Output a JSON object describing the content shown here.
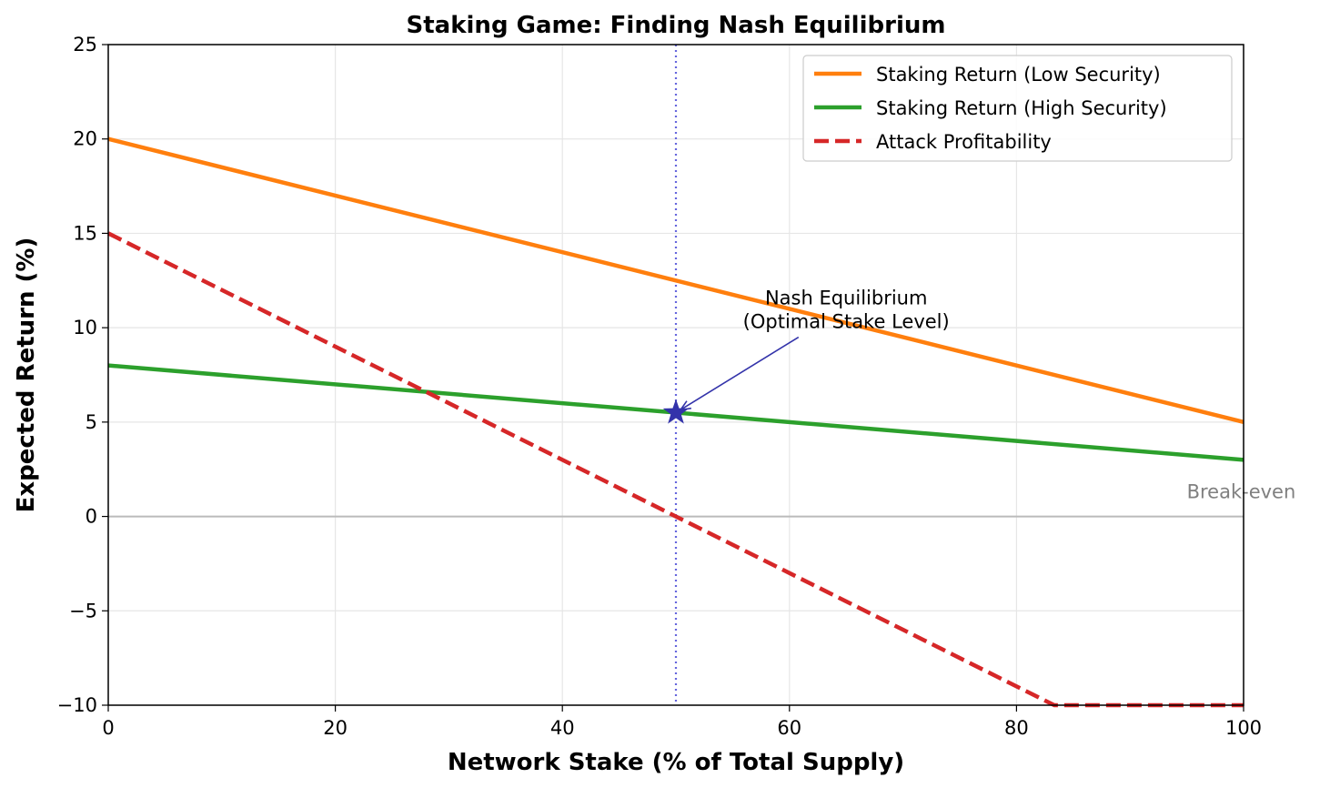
{
  "chart_data": {
    "type": "line",
    "title": "Staking Game: Finding Nash Equilibrium",
    "xlabel": "Network Stake (% of Total Supply)",
    "ylabel": "Expected Return (%)",
    "xlim": [
      0,
      100
    ],
    "ylim": [
      -10,
      25
    ],
    "xticks": [
      0,
      20,
      40,
      60,
      80,
      100
    ],
    "yticks": [
      -10,
      -5,
      0,
      5,
      10,
      15,
      20,
      25
    ],
    "xtick_labels": [
      "0",
      "20",
      "40",
      "60",
      "80",
      "100"
    ],
    "ytick_labels": [
      "−10",
      "−5",
      "0",
      "5",
      "10",
      "15",
      "20",
      "25"
    ],
    "grid": true,
    "legend_position": "top-right",
    "series": [
      {
        "name": "Staking Return (Low Security)",
        "color": "#ff7f0e",
        "style": "solid",
        "x": [
          0,
          100
        ],
        "y": [
          20,
          5
        ]
      },
      {
        "name": "Staking Return (High Security)",
        "color": "#2ca02c",
        "style": "solid",
        "x": [
          0,
          100
        ],
        "y": [
          8,
          3
        ]
      },
      {
        "name": "Attack Profitability",
        "color": "#d62728",
        "style": "dashed",
        "x": [
          0,
          83.33,
          100
        ],
        "y": [
          15,
          -10,
          -10
        ]
      }
    ],
    "reference_lines": {
      "break_even": {
        "y": 0,
        "label": "Break-even",
        "color": "#bbbbbb"
      },
      "equilibrium_stake": {
        "x": 50,
        "color": "#6666dd",
        "style": "dotted"
      }
    },
    "equilibrium_point": {
      "x": 50,
      "y": 5.5,
      "marker": "star",
      "color": "#3333aa"
    },
    "annotation": {
      "text_lines": [
        "Nash Equilibrium",
        "(Optimal Stake Level)"
      ],
      "text_x": 65,
      "text_y": 11,
      "arrow_from": [
        60.8,
        9.5
      ],
      "arrow_to": [
        50,
        5.5
      ],
      "color": "#3333aa"
    }
  }
}
